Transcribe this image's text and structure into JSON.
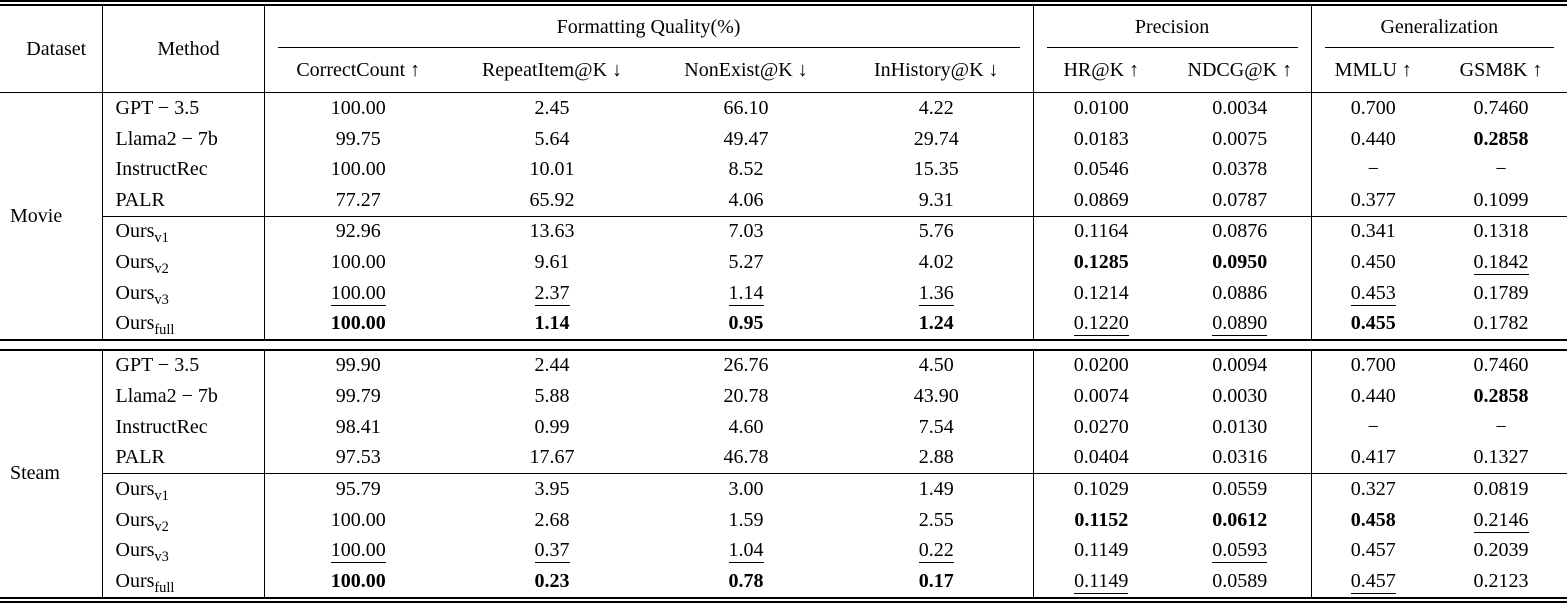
{
  "table": {
    "header": {
      "dataset": "Dataset",
      "method": "Method",
      "groups": [
        {
          "label": "Formatting Quality(%)",
          "cols": [
            "CorrectCount ↑",
            "RepeatItem@K ↓",
            "NonExist@K ↓",
            "InHistory@K ↓"
          ]
        },
        {
          "label": "Precision",
          "cols": [
            "HR@K ↑",
            "NDCG@K ↑"
          ]
        },
        {
          "label": "Generalization",
          "cols": [
            "MMLU ↑",
            "GSM8K ↑"
          ]
        }
      ]
    },
    "style_legend": {
      "b": "bold-best",
      "u": "underline-second-best"
    },
    "sections": [
      {
        "dataset": "Movie",
        "rows": [
          {
            "method": {
              "base": "GPT − 3.5",
              "sub": ""
            },
            "cells": [
              [
                "100.00",
                ""
              ],
              [
                "2.45",
                ""
              ],
              [
                "66.10",
                ""
              ],
              [
                "4.22",
                ""
              ],
              [
                "0.0100",
                ""
              ],
              [
                "0.0034",
                ""
              ],
              [
                "0.700",
                ""
              ],
              [
                "0.7460",
                ""
              ]
            ]
          },
          {
            "method": {
              "base": "Llama2 − 7b",
              "sub": ""
            },
            "cells": [
              [
                "99.75",
                ""
              ],
              [
                "5.64",
                ""
              ],
              [
                "49.47",
                ""
              ],
              [
                "29.74",
                ""
              ],
              [
                "0.0183",
                ""
              ],
              [
                "0.0075",
                ""
              ],
              [
                "0.440",
                ""
              ],
              [
                "0.2858",
                "b"
              ]
            ]
          },
          {
            "method": {
              "base": "InstructRec",
              "sub": ""
            },
            "cells": [
              [
                "100.00",
                ""
              ],
              [
                "10.01",
                ""
              ],
              [
                "8.52",
                ""
              ],
              [
                "15.35",
                ""
              ],
              [
                "0.0546",
                ""
              ],
              [
                "0.0378",
                ""
              ],
              [
                "−",
                ""
              ],
              [
                "−",
                ""
              ]
            ]
          },
          {
            "method": {
              "base": "PALR",
              "sub": ""
            },
            "cells": [
              [
                "77.27",
                ""
              ],
              [
                "65.92",
                ""
              ],
              [
                "4.06",
                ""
              ],
              [
                "9.31",
                ""
              ],
              [
                "0.0869",
                ""
              ],
              [
                "0.0787",
                ""
              ],
              [
                "0.377",
                ""
              ],
              [
                "0.1099",
                ""
              ]
            ]
          },
          {
            "method": {
              "base": "Ours",
              "sub": "v1"
            },
            "cells": [
              [
                "92.96",
                ""
              ],
              [
                "13.63",
                ""
              ],
              [
                "7.03",
                ""
              ],
              [
                "5.76",
                ""
              ],
              [
                "0.1164",
                ""
              ],
              [
                "0.0876",
                ""
              ],
              [
                "0.341",
                ""
              ],
              [
                "0.1318",
                ""
              ]
            ]
          },
          {
            "method": {
              "base": "Ours",
              "sub": "v2"
            },
            "cells": [
              [
                "100.00",
                ""
              ],
              [
                "9.61",
                ""
              ],
              [
                "5.27",
                ""
              ],
              [
                "4.02",
                ""
              ],
              [
                "0.1285",
                "b"
              ],
              [
                "0.0950",
                "b"
              ],
              [
                "0.450",
                ""
              ],
              [
                "0.1842",
                "u"
              ]
            ]
          },
          {
            "method": {
              "base": "Ours",
              "sub": "v3"
            },
            "cells": [
              [
                "100.00",
                "u"
              ],
              [
                "2.37",
                "u"
              ],
              [
                "1.14",
                "u"
              ],
              [
                "1.36",
                "u"
              ],
              [
                "0.1214",
                ""
              ],
              [
                "0.0886",
                ""
              ],
              [
                "0.453",
                "u"
              ],
              [
                "0.1789",
                ""
              ]
            ]
          },
          {
            "method": {
              "base": "Ours",
              "sub": "full"
            },
            "cells": [
              [
                "100.00",
                "b"
              ],
              [
                "1.14",
                "b"
              ],
              [
                "0.95",
                "b"
              ],
              [
                "1.24",
                "b"
              ],
              [
                "0.1220",
                "u"
              ],
              [
                "0.0890",
                "u"
              ],
              [
                "0.455",
                "b"
              ],
              [
                "0.1782",
                ""
              ]
            ]
          }
        ]
      },
      {
        "dataset": "Steam",
        "rows": [
          {
            "method": {
              "base": "GPT − 3.5",
              "sub": ""
            },
            "cells": [
              [
                "99.90",
                ""
              ],
              [
                "2.44",
                ""
              ],
              [
                "26.76",
                ""
              ],
              [
                "4.50",
                ""
              ],
              [
                "0.0200",
                ""
              ],
              [
                "0.0094",
                ""
              ],
              [
                "0.700",
                ""
              ],
              [
                "0.7460",
                ""
              ]
            ]
          },
          {
            "method": {
              "base": "Llama2 − 7b",
              "sub": ""
            },
            "cells": [
              [
                "99.79",
                ""
              ],
              [
                "5.88",
                ""
              ],
              [
                "20.78",
                ""
              ],
              [
                "43.90",
                ""
              ],
              [
                "0.0074",
                ""
              ],
              [
                "0.0030",
                ""
              ],
              [
                "0.440",
                ""
              ],
              [
                "0.2858",
                "b"
              ]
            ]
          },
          {
            "method": {
              "base": "InstructRec",
              "sub": ""
            },
            "cells": [
              [
                "98.41",
                ""
              ],
              [
                "0.99",
                ""
              ],
              [
                "4.60",
                ""
              ],
              [
                "7.54",
                ""
              ],
              [
                "0.0270",
                ""
              ],
              [
                "0.0130",
                ""
              ],
              [
                "−",
                ""
              ],
              [
                "−",
                ""
              ]
            ]
          },
          {
            "method": {
              "base": "PALR",
              "sub": ""
            },
            "cells": [
              [
                "97.53",
                ""
              ],
              [
                "17.67",
                ""
              ],
              [
                "46.78",
                ""
              ],
              [
                "2.88",
                ""
              ],
              [
                "0.0404",
                ""
              ],
              [
                "0.0316",
                ""
              ],
              [
                "0.417",
                ""
              ],
              [
                "0.1327",
                ""
              ]
            ]
          },
          {
            "method": {
              "base": "Ours",
              "sub": "v1"
            },
            "cells": [
              [
                "95.79",
                ""
              ],
              [
                "3.95",
                ""
              ],
              [
                "3.00",
                ""
              ],
              [
                "1.49",
                ""
              ],
              [
                "0.1029",
                ""
              ],
              [
                "0.0559",
                ""
              ],
              [
                "0.327",
                ""
              ],
              [
                "0.0819",
                ""
              ]
            ]
          },
          {
            "method": {
              "base": "Ours",
              "sub": "v2"
            },
            "cells": [
              [
                "100.00",
                ""
              ],
              [
                "2.68",
                ""
              ],
              [
                "1.59",
                ""
              ],
              [
                "2.55",
                ""
              ],
              [
                "0.1152",
                "b"
              ],
              [
                "0.0612",
                "b"
              ],
              [
                "0.458",
                "b"
              ],
              [
                "0.2146",
                "u"
              ]
            ]
          },
          {
            "method": {
              "base": "Ours",
              "sub": "v3"
            },
            "cells": [
              [
                "100.00",
                "u"
              ],
              [
                "0.37",
                "u"
              ],
              [
                "1.04",
                "u"
              ],
              [
                "0.22",
                "u"
              ],
              [
                "0.1149",
                ""
              ],
              [
                "0.0593",
                "u"
              ],
              [
                "0.457",
                ""
              ],
              [
                "0.2039",
                ""
              ]
            ]
          },
          {
            "method": {
              "base": "Ours",
              "sub": "full"
            },
            "cells": [
              [
                "100.00",
                "b"
              ],
              [
                "0.23",
                "b"
              ],
              [
                "0.78",
                "b"
              ],
              [
                "0.17",
                "b"
              ],
              [
                "0.1149",
                "u"
              ],
              [
                "0.0589",
                ""
              ],
              [
                "0.457",
                "u"
              ],
              [
                "0.2123",
                ""
              ]
            ]
          }
        ]
      }
    ]
  }
}
